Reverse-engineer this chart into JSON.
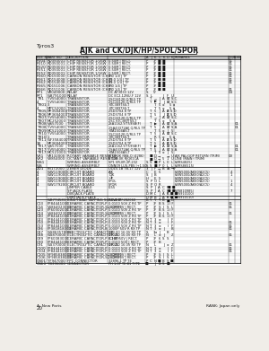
{
  "title": "AJK and CK/DJK/HP/SPOL/SPOR",
  "header_label": "Tyros3",
  "page_number": "20",
  "footer_text": "A: New Parts",
  "footer_right": "RANK: Japan only",
  "bg_color": "#f0ede8",
  "text_color": "#1a1a1a",
  "title_bg": "#ffffff",
  "title_border": "#333333",
  "header_bg": "#c8c8c8"
}
